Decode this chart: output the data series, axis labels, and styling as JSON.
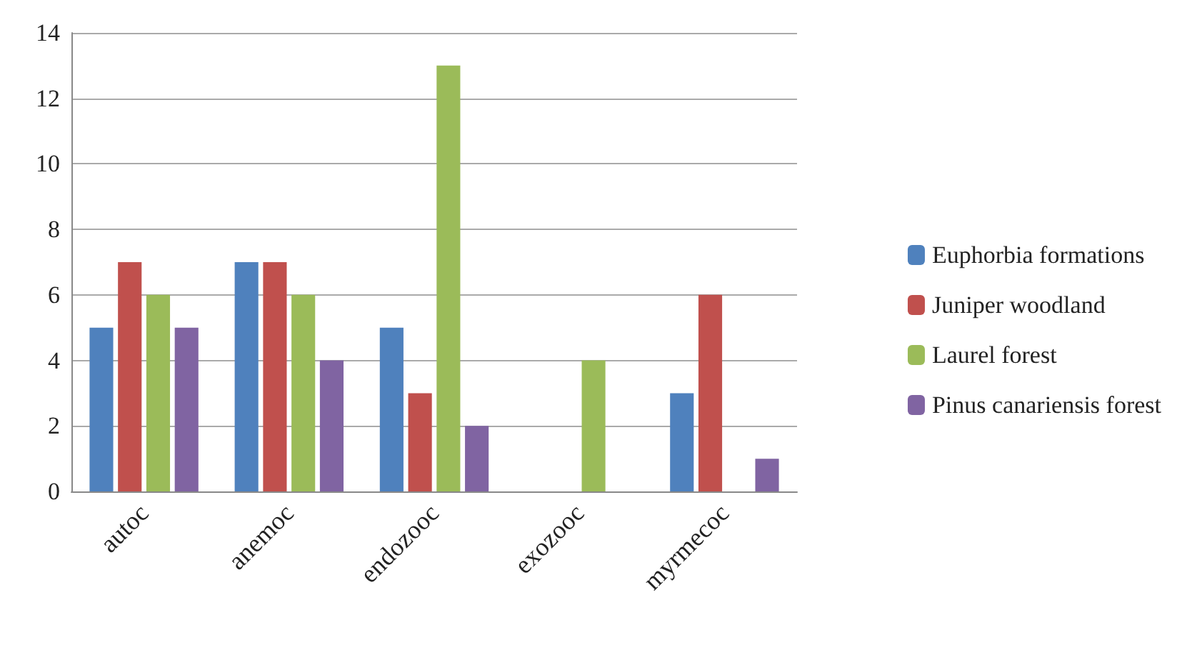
{
  "chart_data": {
    "type": "bar",
    "categories": [
      "autoc",
      "anemoc",
      "endozooc",
      "exozooc",
      "myrmecoc"
    ],
    "series": [
      {
        "name": "Euphorbia formations",
        "color": "#4f81bd",
        "values": [
          5,
          7,
          5,
          0,
          3
        ]
      },
      {
        "name": "Juniper woodland",
        "color": "#c0504d",
        "values": [
          7,
          7,
          3,
          0,
          6
        ]
      },
      {
        "name": "Laurel forest",
        "color": "#9bbb59",
        "values": [
          6,
          6,
          13,
          4,
          0
        ]
      },
      {
        "name": "Pinus canariensis forest",
        "color": "#8064a2",
        "values": [
          5,
          4,
          2,
          0,
          1
        ]
      }
    ],
    "ylim": [
      0,
      14
    ],
    "yticks": [
      0,
      2,
      4,
      6,
      8,
      10,
      12,
      14
    ],
    "grid": "y",
    "legend": "right"
  }
}
